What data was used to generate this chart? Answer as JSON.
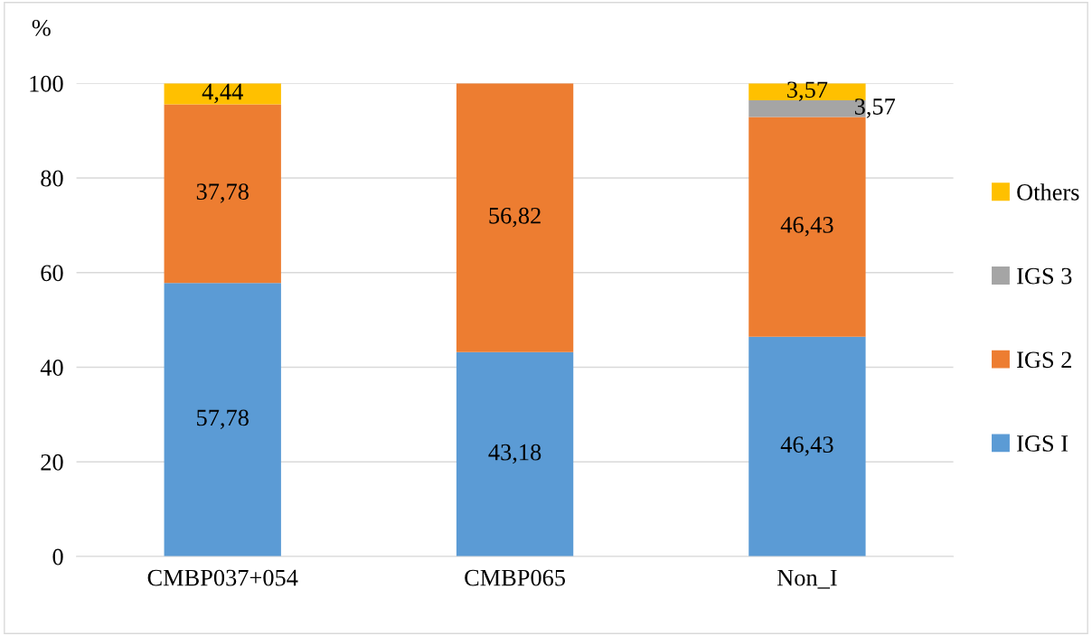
{
  "chart_data": {
    "type": "bar",
    "stacked": true,
    "ylabel": "%",
    "categories": [
      "CMBP037+054",
      "CMBP065",
      "Non_I"
    ],
    "series": [
      {
        "name": "IGS I",
        "color": "#5b9bd5",
        "values": [
          57.78,
          43.18,
          46.43
        ],
        "value_labels": [
          "57,78",
          "43,18",
          "46,43"
        ]
      },
      {
        "name": "IGS 2",
        "color": "#ed7d31",
        "values": [
          37.78,
          56.82,
          46.43
        ],
        "value_labels": [
          "37,78",
          "56,82",
          "46,43"
        ]
      },
      {
        "name": "IGS 3",
        "color": "#a5a5a5",
        "values": [
          null,
          null,
          3.57
        ],
        "value_labels": [
          null,
          null,
          "3,57"
        ]
      },
      {
        "name": "Others",
        "color": "#ffc000",
        "values": [
          4.44,
          null,
          3.57
        ],
        "value_labels": [
          "4,44",
          null,
          "3,57"
        ]
      }
    ],
    "ylim": [
      0,
      100
    ],
    "yticks": [
      0,
      20,
      40,
      60,
      80,
      100
    ],
    "grid": "y",
    "legend": "right"
  }
}
